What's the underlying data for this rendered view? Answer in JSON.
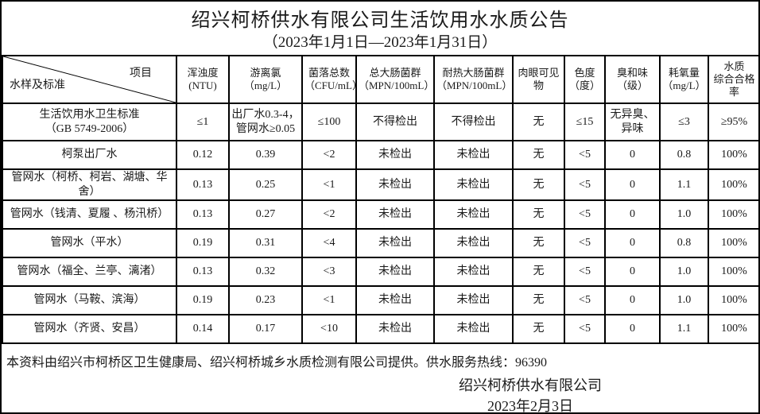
{
  "title": "绍兴柯桥供水有限公司生活饮用水水质公告",
  "subtitle": "（2023年1月1日—2023年1月31日）",
  "table": {
    "corner": {
      "top_right": "项目",
      "bottom_left": "水样及标准"
    },
    "columns": [
      [
        "浑浊度",
        "(NTU)"
      ],
      [
        "游离氯（mg/L）"
      ],
      [
        "菌落总数",
        "（CFU/mL）"
      ],
      [
        "总大肠菌群",
        "（MPN/100mL）"
      ],
      [
        "耐热大肠菌群",
        "（MPN/100mL）"
      ],
      [
        "肉眼可见物"
      ],
      [
        "色度",
        "（度）"
      ],
      [
        "臭和味",
        "（级）"
      ],
      [
        "耗氧量",
        "（mg/L）"
      ],
      [
        "水质",
        "综合合格率"
      ]
    ],
    "standard_row": {
      "label": [
        "生活饮用水卫生标准",
        "（GB 5749-2006）"
      ],
      "values": [
        [
          "≤1"
        ],
        [
          "出厂水0.3-4，",
          "管网水≥0.05"
        ],
        [
          "≤100"
        ],
        [
          "不得检出"
        ],
        [
          "不得检出"
        ],
        [
          "无"
        ],
        [
          "≤15"
        ],
        [
          "无异臭、",
          "异味"
        ],
        [
          "≤3"
        ],
        [
          "≥95%"
        ]
      ]
    },
    "rows": [
      {
        "label": "柯泵出厂水",
        "values": [
          "0.12",
          "0.39",
          "<2",
          "未检出",
          "未检出",
          "无",
          "<5",
          "0",
          "0.8",
          "100%"
        ]
      },
      {
        "label": "管网水（柯桥、柯岩、湖塘、华舍）",
        "values": [
          "0.13",
          "0.25",
          "<1",
          "未检出",
          "未检出",
          "无",
          "<5",
          "0",
          "1.1",
          "100%"
        ]
      },
      {
        "label": "管网水（钱清、夏履 、杨汛桥）",
        "values": [
          "0.13",
          "0.27",
          "<2",
          "未检出",
          "未检出",
          "无",
          "<5",
          "0",
          "1.0",
          "100%"
        ]
      },
      {
        "label": "管网水（平水）",
        "values": [
          "0.19",
          "0.31",
          "<4",
          "未检出",
          "未检出",
          "无",
          "<5",
          "0",
          "0.8",
          "100%"
        ]
      },
      {
        "label": "管网水（福全、兰亭、漓渚）",
        "values": [
          "0.13",
          "0.32",
          "<3",
          "未检出",
          "未检出",
          "无",
          "<5",
          "0",
          "1.0",
          "100%"
        ]
      },
      {
        "label": "管网水（马鞍、滨海）",
        "values": [
          "0.19",
          "0.23",
          "<1",
          "未检出",
          "未检出",
          "无",
          "<5",
          "0",
          "1.0",
          "100%"
        ]
      },
      {
        "label": "管网水（齐贤、安昌）",
        "values": [
          "0.14",
          "0.17",
          "<10",
          "未检出",
          "未检出",
          "无",
          "<5",
          "0",
          "1.1",
          "100%"
        ]
      }
    ]
  },
  "footer": {
    "note": "本资料由绍兴市柯桥区卫生健康局、绍兴柯桥城乡水质检测有限公司提供。供水服务热线：96390",
    "company": "绍兴柯桥供水有限公司",
    "date": "2023年2月3日"
  }
}
